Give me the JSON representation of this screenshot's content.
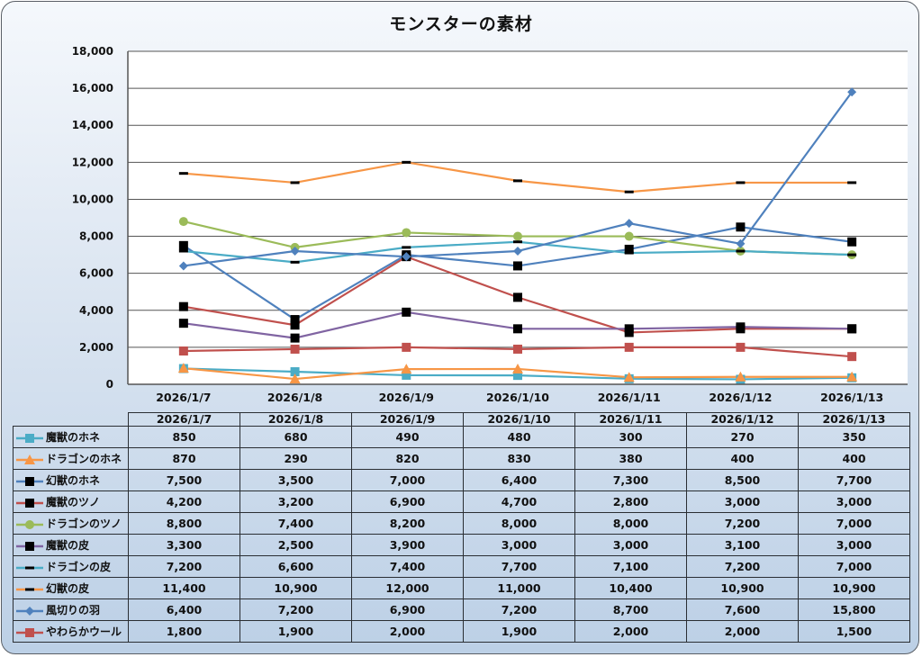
{
  "chart_data": {
    "type": "line",
    "title": "モンスターの素材",
    "xlabel": "",
    "ylabel": "",
    "categories": [
      "2026/1/7",
      "2026/1/8",
      "2026/1/9",
      "2026/1/10",
      "2026/1/11",
      "2026/1/12",
      "2026/1/13"
    ],
    "ylim": [
      0,
      18000
    ],
    "yticks": [
      0,
      2000,
      4000,
      6000,
      8000,
      10000,
      12000,
      14000,
      16000,
      18000
    ],
    "ytick_labels": [
      "0",
      "2,000",
      "4,000",
      "6,000",
      "8,000",
      "10,000",
      "12,000",
      "14,000",
      "16,000",
      "18,000"
    ],
    "grid": true,
    "legend": "data-table-bottom",
    "series": [
      {
        "name": "魔獣のホネ",
        "color": "#4bacc6",
        "marker": "square",
        "marker_color": "#4bacc6",
        "values": [
          850,
          680,
          490,
          480,
          300,
          270,
          350
        ],
        "labels": [
          "850",
          "680",
          "490",
          "480",
          "300",
          "270",
          "350"
        ]
      },
      {
        "name": "ドラゴンのホネ",
        "color": "#f79646",
        "marker": "triangle",
        "marker_color": "#f79646",
        "values": [
          870,
          290,
          820,
          830,
          380,
          400,
          400
        ],
        "labels": [
          "870",
          "290",
          "820",
          "830",
          "380",
          "400",
          "400"
        ]
      },
      {
        "name": "幻獣のホネ",
        "color": "#4f81bd",
        "marker": "square",
        "marker_color": "#000000",
        "values": [
          7500,
          3500,
          7000,
          6400,
          7300,
          8500,
          7700
        ],
        "labels": [
          "7,500",
          "3,500",
          "7,000",
          "6,400",
          "7,300",
          "8,500",
          "7,700"
        ]
      },
      {
        "name": "魔獣のツノ",
        "color": "#c0504d",
        "marker": "square",
        "marker_color": "#000000",
        "values": [
          4200,
          3200,
          6900,
          4700,
          2800,
          3000,
          3000
        ],
        "labels": [
          "4,200",
          "3,200",
          "6,900",
          "4,700",
          "2,800",
          "3,000",
          "3,000"
        ]
      },
      {
        "name": "ドラゴンのツノ",
        "color": "#9bbb59",
        "marker": "circle",
        "marker_color": "#9bbb59",
        "values": [
          8800,
          7400,
          8200,
          8000,
          8000,
          7200,
          7000
        ],
        "labels": [
          "8,800",
          "7,400",
          "8,200",
          "8,000",
          "8,000",
          "7,200",
          "7,000"
        ]
      },
      {
        "name": "魔獣の皮",
        "color": "#8064a2",
        "marker": "square",
        "marker_color": "#000000",
        "values": [
          3300,
          2500,
          3900,
          3000,
          3000,
          3100,
          3000
        ],
        "labels": [
          "3,300",
          "2,500",
          "3,900",
          "3,000",
          "3,000",
          "3,100",
          "3,000"
        ]
      },
      {
        "name": "ドラゴンの皮",
        "color": "#4bacc6",
        "marker": "dash",
        "marker_color": "#000000",
        "values": [
          7200,
          6600,
          7400,
          7700,
          7100,
          7200,
          7000
        ],
        "labels": [
          "7,200",
          "6,600",
          "7,400",
          "7,700",
          "7,100",
          "7,200",
          "7,000"
        ]
      },
      {
        "name": "幻獣の皮",
        "color": "#f79646",
        "marker": "dash",
        "marker_color": "#000000",
        "values": [
          11400,
          10900,
          12000,
          11000,
          10400,
          10900,
          10900
        ],
        "labels": [
          "11,400",
          "10,900",
          "12,000",
          "11,000",
          "10,400",
          "10,900",
          "10,900"
        ]
      },
      {
        "name": "風切りの羽",
        "color": "#4f81bd",
        "marker": "diamond",
        "marker_color": "#4f81bd",
        "values": [
          6400,
          7200,
          6900,
          7200,
          8700,
          7600,
          15800
        ],
        "labels": [
          "6,400",
          "7,200",
          "6,900",
          "7,200",
          "8,700",
          "7,600",
          "15,800"
        ]
      },
      {
        "name": "やわらかウール",
        "color": "#c0504d",
        "marker": "square",
        "marker_color": "#c0504d",
        "values": [
          1800,
          1900,
          2000,
          1900,
          2000,
          2000,
          1500
        ],
        "labels": [
          "1,800",
          "1,900",
          "2,000",
          "1,900",
          "2,000",
          "2,000",
          "1,500"
        ]
      }
    ]
  }
}
